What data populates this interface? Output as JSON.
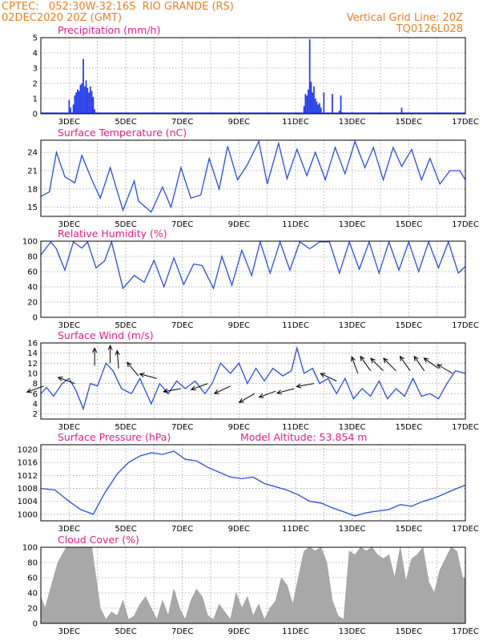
{
  "header": {
    "line1_left": "CPTEC:   052:30W-32:16S  RIO GRANDE (RS)",
    "line2_left": "02DEC2020 20Z (GMT)",
    "line1_right": "Vertical Grid Line: 20Z",
    "line2_right": "TQ0126L028"
  },
  "x_axis": {
    "tick_labels": [
      "3DEC",
      "5DEC",
      "7DEC",
      "9DEC",
      "11DEC",
      "13DEC",
      "15DEC",
      "17DEC"
    ],
    "tick_days": [
      3,
      5,
      7,
      9,
      11,
      13,
      15,
      17
    ],
    "range_days": [
      2,
      17
    ]
  },
  "chart_data": [
    {
      "id": "precip",
      "type": "bar",
      "title": "Precipitation (mm/h)",
      "ylim": [
        0,
        5
      ],
      "yticks": [
        0,
        1,
        2,
        3,
        4,
        5
      ],
      "x_unit": "day of December 2020 (fractional)",
      "x": [
        3.0,
        3.05,
        3.15,
        3.2,
        3.25,
        3.3,
        3.35,
        3.4,
        3.45,
        3.5,
        3.55,
        3.6,
        3.65,
        3.7,
        3.75,
        3.8,
        3.85,
        3.9,
        11.3,
        11.35,
        11.4,
        11.45,
        11.5,
        11.55,
        11.6,
        11.65,
        11.7,
        11.75,
        11.8,
        11.85,
        11.9,
        12.0,
        12.3,
        12.55,
        12.6,
        12.65,
        14.75
      ],
      "values": [
        0.9,
        0.4,
        0.6,
        1.2,
        1.4,
        1.6,
        1.5,
        1.9,
        2.0,
        3.6,
        1.8,
        2.2,
        1.7,
        1.4,
        1.8,
        1.5,
        1.1,
        0.3,
        0.5,
        1.3,
        1.2,
        1.6,
        4.9,
        2.1,
        1.4,
        1.8,
        1.0,
        0.8,
        0.6,
        0.7,
        0.4,
        1.4,
        1.3,
        0.2,
        1.2,
        0.1,
        0.4
      ]
    },
    {
      "id": "temp",
      "type": "line",
      "title": "Surface Temperature (nC)",
      "ylim": [
        13.5,
        26
      ],
      "yticks": [
        15,
        18,
        21,
        24
      ],
      "x": [
        2.0,
        2.3,
        2.55,
        2.85,
        3.2,
        3.45,
        3.8,
        4.1,
        4.45,
        4.9,
        5.3,
        5.45,
        5.9,
        6.3,
        6.6,
        6.95,
        7.3,
        7.65,
        7.95,
        8.3,
        8.6,
        8.95,
        9.3,
        9.7,
        10.0,
        10.4,
        10.7,
        11.05,
        11.4,
        11.7,
        12.05,
        12.4,
        12.75,
        13.1,
        13.45,
        13.75,
        14.1,
        14.45,
        14.75,
        15.1,
        15.45,
        15.75,
        16.1,
        16.45,
        16.8,
        17.0
      ],
      "values": [
        16.8,
        17.5,
        24.0,
        20.0,
        19.0,
        23.5,
        19.5,
        16.5,
        21.5,
        14.5,
        19.3,
        16.0,
        14.2,
        18.3,
        15.0,
        21.5,
        16.5,
        17.0,
        23.0,
        18.0,
        25.0,
        19.5,
        22.0,
        25.8,
        18.8,
        25.5,
        19.7,
        24.5,
        20.2,
        24.0,
        19.5,
        24.8,
        20.5,
        25.8,
        21.5,
        24.8,
        19.5,
        24.8,
        21.7,
        24.5,
        19.5,
        23.0,
        18.8,
        21.0,
        21.0,
        19.5
      ]
    },
    {
      "id": "rh",
      "type": "line",
      "title": "Relative Humidity (%)",
      "ylim": [
        0,
        100
      ],
      "yticks": [
        0,
        20,
        40,
        60,
        80,
        100
      ],
      "x": [
        2.0,
        2.35,
        2.55,
        2.85,
        3.15,
        3.45,
        3.65,
        3.95,
        4.25,
        4.5,
        4.9,
        5.3,
        5.65,
        6.0,
        6.35,
        6.7,
        7.05,
        7.4,
        7.7,
        8.1,
        8.4,
        8.75,
        9.1,
        9.45,
        9.75,
        10.1,
        10.45,
        10.8,
        11.15,
        11.5,
        11.85,
        12.2,
        12.55,
        12.9,
        13.25,
        13.6,
        13.95,
        14.3,
        14.65,
        15.0,
        15.35,
        15.7,
        16.05,
        16.4,
        16.75,
        17.0
      ],
      "values": [
        82,
        99,
        90,
        62,
        99,
        91,
        99,
        65,
        74,
        99,
        38,
        55,
        46,
        75,
        40,
        78,
        43,
        70,
        68,
        38,
        80,
        42,
        88,
        55,
        99,
        58,
        99,
        62,
        99,
        90,
        99,
        99,
        58,
        99,
        63,
        99,
        58,
        99,
        62,
        99,
        60,
        99,
        65,
        99,
        58,
        67
      ]
    },
    {
      "id": "wind",
      "type": "line",
      "title": "Surface Wind (m/s)",
      "ylim": [
        1,
        16
      ],
      "yticks": [
        2,
        4,
        6,
        8,
        10,
        12,
        14,
        16
      ],
      "x": [
        2.0,
        2.2,
        2.45,
        2.75,
        3.0,
        3.25,
        3.5,
        3.75,
        4.0,
        4.3,
        4.55,
        4.85,
        5.2,
        5.5,
        5.9,
        6.2,
        6.5,
        6.8,
        7.1,
        7.45,
        7.8,
        8.05,
        8.35,
        8.7,
        9.0,
        9.3,
        9.6,
        9.9,
        10.2,
        10.55,
        10.85,
        11.05,
        11.3,
        11.6,
        11.85,
        12.15,
        12.45,
        12.75,
        13.05,
        13.35,
        13.65,
        13.95,
        14.25,
        14.55,
        14.85,
        15.15,
        15.45,
        15.75,
        16.05,
        16.35,
        16.65,
        17.0
      ],
      "values": [
        6.0,
        7.2,
        5.5,
        8.0,
        9.0,
        6.5,
        3.0,
        8.0,
        7.5,
        12.0,
        10.5,
        7.0,
        6.0,
        9.0,
        4.0,
        8.0,
        6.0,
        8.5,
        7.0,
        8.5,
        6.0,
        8.0,
        12.0,
        10.0,
        12.0,
        8.0,
        11.0,
        8.5,
        11.0,
        9.5,
        10.5,
        15.0,
        10.0,
        11.0,
        8.0,
        9.0,
        6.0,
        9.0,
        5.0,
        7.0,
        5.5,
        8.5,
        5.0,
        7.0,
        5.5,
        9.0,
        5.5,
        6.0,
        5.0,
        8.0,
        10.5,
        10.0
      ],
      "arrows": {
        "x": [
          2.1,
          3.2,
          3.9,
          4.45,
          4.75,
          5.45,
          6.1,
          6.95,
          7.9,
          8.7,
          9.55,
          10.3,
          10.95,
          11.65,
          12.45,
          13.2,
          13.65,
          14.1,
          14.55,
          15.05,
          15.55,
          16.05,
          16.55
        ],
        "speed": [
          7.5,
          8.0,
          11.5,
          12.0,
          11.0,
          9.5,
          9.0,
          7.0,
          8.0,
          7.5,
          6.0,
          6.5,
          7.0,
          8.0,
          8.5,
          10.0,
          10.5,
          10.5,
          10.5,
          10.5,
          10.5,
          11.0,
          10.0
        ]
      }
    },
    {
      "id": "pressure",
      "type": "line",
      "title": "Surface Pressure (hPa)",
      "annotation": "Model Altitude: 53.854 m",
      "ylim": [
        998,
        1021.5
      ],
      "yticks": [
        1000,
        1004,
        1008,
        1012,
        1016,
        1020
      ],
      "x": [
        2.0,
        2.5,
        3.0,
        3.4,
        3.85,
        4.25,
        4.7,
        5.1,
        5.5,
        5.9,
        6.3,
        6.7,
        7.1,
        7.5,
        7.9,
        8.3,
        8.7,
        9.1,
        9.5,
        9.9,
        10.3,
        10.7,
        11.1,
        11.5,
        11.9,
        12.3,
        12.7,
        13.1,
        13.5,
        13.9,
        14.3,
        14.7,
        15.1,
        15.5,
        15.9,
        16.3,
        16.7,
        17.0
      ],
      "values": [
        1008.0,
        1007.5,
        1004.0,
        1001.5,
        1000.0,
        1006.5,
        1012.5,
        1016.0,
        1018.0,
        1019.0,
        1018.5,
        1019.5,
        1017.0,
        1016.5,
        1014.5,
        1013.0,
        1011.5,
        1011.0,
        1011.5,
        1009.5,
        1008.5,
        1007.5,
        1006.0,
        1004.0,
        1003.5,
        1002.0,
        1000.8,
        999.5,
        1000.5,
        1001.0,
        1001.5,
        1003.0,
        1002.5,
        1004.0,
        1005.0,
        1006.5,
        1008.0,
        1009.0
      ]
    },
    {
      "id": "cloud",
      "type": "area",
      "title": "Cloud Cover (%)",
      "ylim": [
        0,
        100
      ],
      "yticks": [
        0,
        20,
        40,
        60,
        80,
        100
      ],
      "x": [
        2.0,
        2.15,
        2.3,
        2.45,
        2.6,
        2.75,
        2.9,
        3.05,
        3.2,
        3.35,
        3.5,
        3.65,
        3.8,
        3.95,
        4.1,
        4.3,
        4.5,
        4.7,
        4.9,
        5.1,
        5.3,
        5.5,
        5.7,
        5.9,
        6.1,
        6.3,
        6.5,
        6.7,
        6.9,
        7.1,
        7.3,
        7.5,
        7.7,
        7.9,
        8.1,
        8.3,
        8.5,
        8.7,
        8.9,
        9.1,
        9.3,
        9.5,
        9.7,
        9.9,
        10.1,
        10.3,
        10.5,
        10.7,
        10.9,
        11.1,
        11.3,
        11.5,
        11.7,
        11.9,
        12.1,
        12.3,
        12.5,
        12.7,
        12.9,
        13.1,
        13.3,
        13.5,
        13.7,
        13.9,
        14.1,
        14.3,
        14.5,
        14.7,
        14.9,
        15.1,
        15.3,
        15.5,
        15.7,
        15.9,
        16.1,
        16.3,
        16.5,
        16.7,
        16.9,
        17.0
      ],
      "values": [
        35,
        20,
        40,
        60,
        80,
        90,
        100,
        100,
        100,
        100,
        100,
        100,
        100,
        60,
        20,
        5,
        15,
        10,
        30,
        5,
        10,
        25,
        35,
        20,
        5,
        30,
        10,
        45,
        20,
        5,
        30,
        45,
        35,
        10,
        5,
        25,
        15,
        5,
        40,
        20,
        35,
        10,
        25,
        5,
        20,
        30,
        60,
        50,
        25,
        60,
        95,
        100,
        95,
        100,
        80,
        30,
        10,
        5,
        95,
        90,
        100,
        95,
        100,
        90,
        85,
        90,
        60,
        100,
        55,
        85,
        90,
        100,
        55,
        40,
        70,
        85,
        100,
        95,
        60,
        60
      ]
    }
  ]
}
